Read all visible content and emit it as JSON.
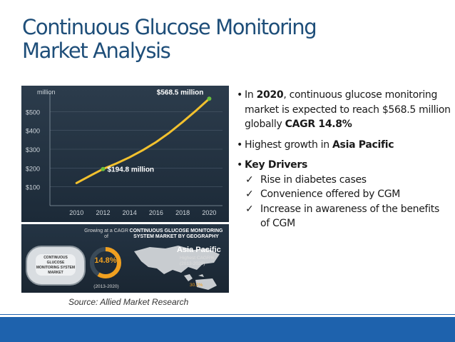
{
  "title": {
    "line1": "Continuous Glucose Monitoring",
    "line2": "Market Analysis"
  },
  "chart": {
    "unit_label": "million",
    "y_ticks": [
      "$100",
      "$200",
      "$300",
      "$400",
      "$500"
    ],
    "x_ticks": [
      "2010",
      "2012",
      "2014",
      "2016",
      "2018",
      "2020"
    ],
    "annotation_2012": "$194.8 million",
    "annotation_2020": "$568.5 million",
    "colors": {
      "line": "#f2c12e",
      "marker": "#6abf3c",
      "grid": "#4a5a6a"
    }
  },
  "chart_data": {
    "type": "line",
    "x": [
      2010,
      2011,
      2012,
      2013,
      2014,
      2015,
      2016,
      2017,
      2018,
      2019,
      2020
    ],
    "series": [
      {
        "values": [
          120,
          158,
          194.8,
          224,
          257,
          295,
          338,
          388,
          445,
          505,
          568.5
        ]
      }
    ],
    "xlim": [
      2008,
      2021
    ],
    "ylim": [
      0,
      600
    ],
    "ylabel": "million",
    "grid": true
  },
  "infographic": {
    "device_text": "CONTINUOUS GLUCOSE MONITORING SYSTEM MARKET",
    "growth_label": "Growing at a CAGR of",
    "cagr_value": "14.8%",
    "period": "(2013-2020)",
    "geo_title": "CONTINUOUS GLUCOSE MONITORING SYSTEM MARKET BY GEOGRAPHY",
    "region": "Asia Pacific",
    "region_sub": "Highest CAGR%",
    "region_period": "(2013-2020)",
    "region_value": "30.2%"
  },
  "source": "Source: Allied Market Research",
  "bullets": {
    "b1_pre": "In ",
    "b1_year": "2020",
    "b1_mid": ", continuous glucose monitoring market is expected to reach $568.5 million globally ",
    "b1_cagr": "CAGR 14.8%",
    "b2_pre": "Highest growth in ",
    "b2_region": "Asia Pacific",
    "b3_title": "Key Drivers",
    "drivers": [
      "Rise in diabetes cases",
      "Convenience offered by CGM",
      "Increase in awareness of the benefits of CGM"
    ],
    "check_glyph": "✓"
  }
}
